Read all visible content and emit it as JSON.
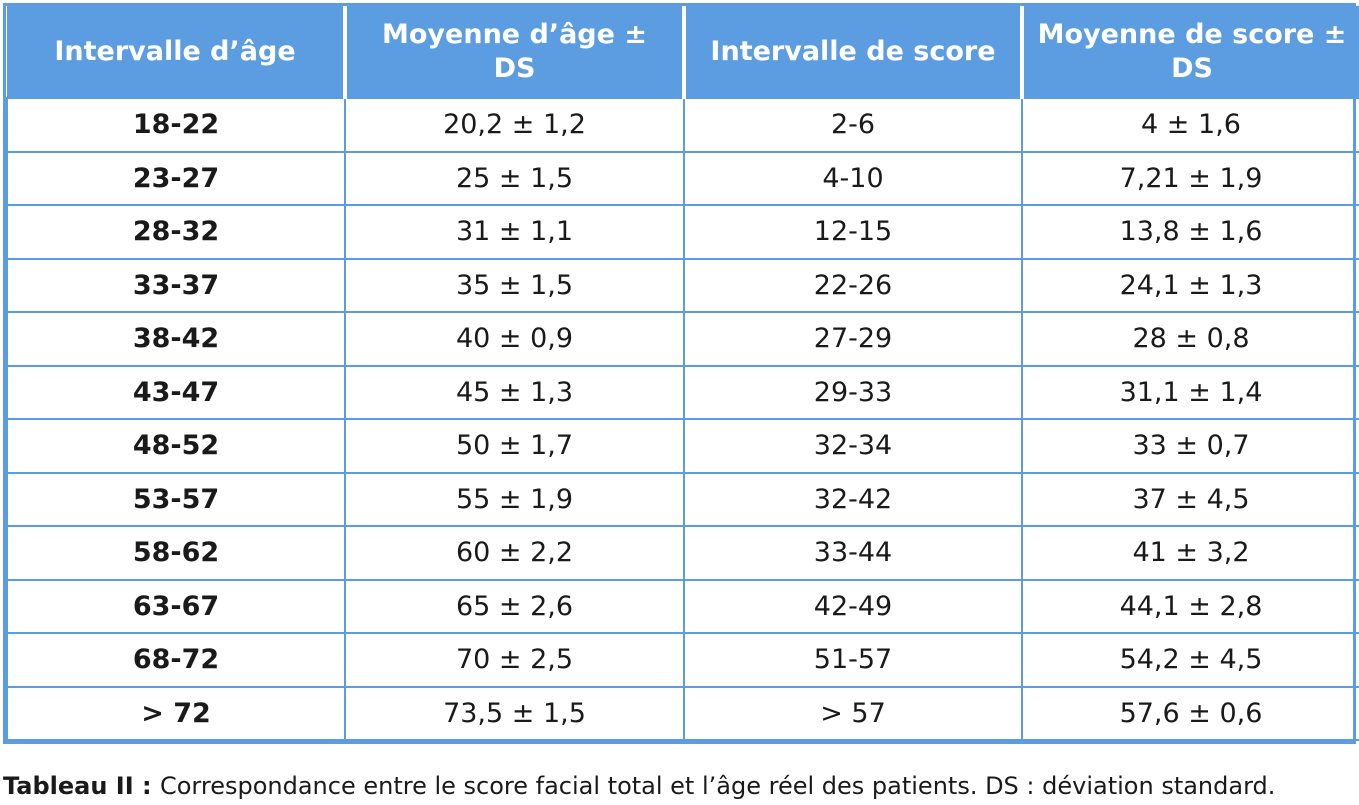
{
  "table": {
    "headers": [
      "Intervalle d’âge",
      "Moyenne d’âge ± DS",
      "Intervalle de score",
      "Moyenne de score ± DS"
    ],
    "rows": [
      [
        "18-22",
        "20,2 ± 1,2",
        "2-6",
        "4 ± 1,6"
      ],
      [
        "23-27",
        "25 ± 1,5",
        "4-10",
        "7,21 ± 1,9"
      ],
      [
        "28-32",
        "31 ± 1,1",
        "12-15",
        "13,8 ± 1,6"
      ],
      [
        "33-37",
        "35 ± 1,5",
        "22-26",
        "24,1 ± 1,3"
      ],
      [
        "38-42",
        "40 ± 0,9",
        "27-29",
        "28 ± 0,8"
      ],
      [
        "43-47",
        "45 ± 1,3",
        "29-33",
        "31,1 ± 1,4"
      ],
      [
        "48-52",
        "50 ± 1,7",
        "32-34",
        "33 ± 0,7"
      ],
      [
        "53-57",
        "55 ± 1,9",
        "32-42",
        "37 ± 4,5"
      ],
      [
        "58-62",
        "60 ± 2,2",
        "33-44",
        "41 ± 3,2"
      ],
      [
        "63-67",
        "65 ± 2,6",
        "42-49",
        "44,1 ± 2,8"
      ],
      [
        "68-72",
        "70 ± 2,5",
        "51-57",
        "54,2 ± 4,5"
      ],
      [
        "> 72",
        "73,5 ± 1,5",
        "> 57",
        "57,6 ± 0,6"
      ]
    ]
  },
  "caption": {
    "label": "Tableau II",
    "separator": " : ",
    "text": "Correspondance entre le score facial total et l’âge réel des patients. DS : déviation standard."
  },
  "colors": {
    "header_bg": "#5b9de0",
    "header_text": "#ffffff",
    "grid": "#5b9de0",
    "body_text": "#1a1a1a"
  }
}
